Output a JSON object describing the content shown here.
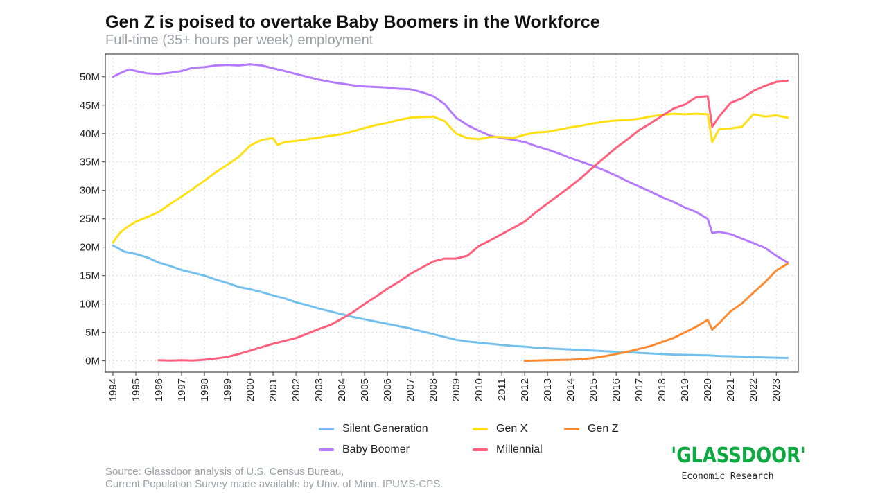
{
  "header": {
    "title": "Gen Z is poised to overtake Baby Boomers in the Workforce",
    "subtitle": "Full-time (35+ hours per week) employment"
  },
  "footer": {
    "source_line1": "Source: Glassdoor analysis of U.S. Census Bureau,",
    "source_line2": "Current Population Survey made available by Univ. of Minn. IPUMS-CPS.",
    "brand_name": "'GLASSDOOR'",
    "brand_sub": "Economic Research"
  },
  "chart_data": {
    "type": "line",
    "title": "Gen Z is poised to overtake Baby Boomers in the Workforce",
    "subtitle": "Full-time (35+ hours per week) employment",
    "xlim": [
      1994,
      2023.6
    ],
    "ylim": [
      -2,
      54
    ],
    "x_ticks": [
      "1994",
      "1995",
      "1996",
      "1997",
      "1998",
      "1999",
      "2000",
      "2001",
      "2002",
      "2003",
      "2004",
      "2005",
      "2006",
      "2007",
      "2008",
      "2009",
      "2010",
      "2011",
      "2012",
      "2013",
      "2014",
      "2015",
      "2016",
      "2017",
      "2018",
      "2019",
      "2020",
      "2021",
      "2022",
      "2023"
    ],
    "y_ticks": [
      {
        "value": 0,
        "label": "0M"
      },
      {
        "value": 5,
        "label": "5M"
      },
      {
        "value": 10,
        "label": "10M"
      },
      {
        "value": 15,
        "label": "15M"
      },
      {
        "value": 20,
        "label": "20M"
      },
      {
        "value": 25,
        "label": "25M"
      },
      {
        "value": 30,
        "label": "30M"
      },
      {
        "value": 35,
        "label": "35M"
      },
      {
        "value": 40,
        "label": "40M"
      },
      {
        "value": 45,
        "label": "45M"
      },
      {
        "value": 50,
        "label": "50M"
      }
    ],
    "grid": true,
    "legend_position": "bottom",
    "series": [
      {
        "name": "Silent Generation",
        "color": "#74c0ec",
        "points": [
          [
            1994,
            20.3
          ],
          [
            1994.5,
            19.2
          ],
          [
            1995,
            18.8
          ],
          [
            1995.5,
            18.2
          ],
          [
            1996,
            17.3
          ],
          [
            1996.5,
            16.7
          ],
          [
            1997,
            16.0
          ],
          [
            1997.5,
            15.5
          ],
          [
            1998,
            15.0
          ],
          [
            1998.5,
            14.3
          ],
          [
            1999,
            13.7
          ],
          [
            1999.5,
            13.0
          ],
          [
            2000,
            12.6
          ],
          [
            2000.5,
            12.1
          ],
          [
            2001,
            11.5
          ],
          [
            2001.5,
            11.0
          ],
          [
            2002,
            10.3
          ],
          [
            2002.5,
            9.8
          ],
          [
            2003,
            9.2
          ],
          [
            2003.5,
            8.7
          ],
          [
            2004,
            8.2
          ],
          [
            2004.5,
            7.7
          ],
          [
            2005,
            7.3
          ],
          [
            2005.5,
            6.9
          ],
          [
            2006,
            6.5
          ],
          [
            2006.5,
            6.1
          ],
          [
            2007,
            5.7
          ],
          [
            2007.5,
            5.2
          ],
          [
            2008,
            4.7
          ],
          [
            2008.5,
            4.2
          ],
          [
            2009,
            3.7
          ],
          [
            2009.5,
            3.4
          ],
          [
            2010,
            3.2
          ],
          [
            2010.5,
            3.0
          ],
          [
            2011,
            2.8
          ],
          [
            2011.5,
            2.6
          ],
          [
            2012,
            2.5
          ],
          [
            2012.5,
            2.3
          ],
          [
            2013,
            2.2
          ],
          [
            2013.5,
            2.1
          ],
          [
            2014,
            2.0
          ],
          [
            2014.5,
            1.9
          ],
          [
            2015,
            1.8
          ],
          [
            2015.5,
            1.7
          ],
          [
            2016,
            1.6
          ],
          [
            2016.5,
            1.5
          ],
          [
            2017,
            1.4
          ],
          [
            2017.5,
            1.3
          ],
          [
            2018,
            1.2
          ],
          [
            2018.5,
            1.1
          ],
          [
            2019,
            1.05
          ],
          [
            2019.5,
            1.0
          ],
          [
            2020,
            0.95
          ],
          [
            2020.5,
            0.85
          ],
          [
            2021,
            0.8
          ],
          [
            2021.5,
            0.75
          ],
          [
            2022,
            0.65
          ],
          [
            2022.5,
            0.6
          ],
          [
            2023,
            0.55
          ],
          [
            2023.5,
            0.5
          ]
        ]
      },
      {
        "name": "Baby Boomer",
        "color": "#b57bff",
        "points": [
          [
            1994,
            50.0
          ],
          [
            1994.3,
            50.6
          ],
          [
            1994.7,
            51.3
          ],
          [
            1995,
            51.0
          ],
          [
            1995.5,
            50.6
          ],
          [
            1996,
            50.5
          ],
          [
            1996.5,
            50.7
          ],
          [
            1997,
            51.0
          ],
          [
            1997.5,
            51.6
          ],
          [
            1998,
            51.7
          ],
          [
            1998.5,
            52.0
          ],
          [
            1999,
            52.1
          ],
          [
            1999.5,
            52.0
          ],
          [
            2000,
            52.2
          ],
          [
            2000.5,
            52.0
          ],
          [
            2001,
            51.5
          ],
          [
            2001.5,
            51.0
          ],
          [
            2002,
            50.5
          ],
          [
            2002.5,
            50.0
          ],
          [
            2003,
            49.5
          ],
          [
            2003.5,
            49.1
          ],
          [
            2004,
            48.8
          ],
          [
            2004.5,
            48.5
          ],
          [
            2005,
            48.3
          ],
          [
            2005.5,
            48.2
          ],
          [
            2006,
            48.1
          ],
          [
            2006.5,
            47.9
          ],
          [
            2007,
            47.8
          ],
          [
            2007.5,
            47.3
          ],
          [
            2008,
            46.6
          ],
          [
            2008.5,
            45.2
          ],
          [
            2009,
            42.8
          ],
          [
            2009.5,
            41.5
          ],
          [
            2010,
            40.5
          ],
          [
            2010.5,
            39.6
          ],
          [
            2011,
            39.2
          ],
          [
            2011.5,
            38.9
          ],
          [
            2012,
            38.5
          ],
          [
            2012.5,
            37.8
          ],
          [
            2013,
            37.2
          ],
          [
            2013.5,
            36.5
          ],
          [
            2014,
            35.7
          ],
          [
            2014.5,
            35.0
          ],
          [
            2015,
            34.3
          ],
          [
            2015.5,
            33.5
          ],
          [
            2016,
            32.6
          ],
          [
            2016.5,
            31.6
          ],
          [
            2017,
            30.7
          ],
          [
            2017.5,
            29.8
          ],
          [
            2018,
            28.8
          ],
          [
            2018.5,
            28.0
          ],
          [
            2019,
            27.0
          ],
          [
            2019.5,
            26.2
          ],
          [
            2020,
            25.0
          ],
          [
            2020.2,
            22.5
          ],
          [
            2020.5,
            22.7
          ],
          [
            2021,
            22.3
          ],
          [
            2021.5,
            21.5
          ],
          [
            2022,
            20.7
          ],
          [
            2022.5,
            19.9
          ],
          [
            2023,
            18.5
          ],
          [
            2023.5,
            17.3
          ]
        ]
      },
      {
        "name": "Gen X",
        "color": "#ffe014",
        "points": [
          [
            1994,
            20.8
          ],
          [
            1994.3,
            22.5
          ],
          [
            1994.6,
            23.5
          ],
          [
            1995,
            24.5
          ],
          [
            1995.5,
            25.3
          ],
          [
            1996,
            26.2
          ],
          [
            1996.5,
            27.6
          ],
          [
            1997,
            28.9
          ],
          [
            1997.5,
            30.3
          ],
          [
            1998,
            31.7
          ],
          [
            1998.5,
            33.2
          ],
          [
            1999,
            34.5
          ],
          [
            1999.5,
            35.9
          ],
          [
            2000,
            37.9
          ],
          [
            2000.5,
            38.9
          ],
          [
            2001,
            39.2
          ],
          [
            2001.2,
            38.0
          ],
          [
            2001.5,
            38.5
          ],
          [
            2002,
            38.7
          ],
          [
            2002.5,
            39.0
          ],
          [
            2003,
            39.3
          ],
          [
            2003.5,
            39.6
          ],
          [
            2004,
            39.9
          ],
          [
            2004.5,
            40.4
          ],
          [
            2005,
            41.0
          ],
          [
            2005.5,
            41.5
          ],
          [
            2006,
            41.9
          ],
          [
            2006.5,
            42.4
          ],
          [
            2007,
            42.8
          ],
          [
            2007.5,
            42.9
          ],
          [
            2008,
            43.0
          ],
          [
            2008.5,
            42.2
          ],
          [
            2009,
            40.0
          ],
          [
            2009.5,
            39.2
          ],
          [
            2010,
            39.0
          ],
          [
            2010.5,
            39.4
          ],
          [
            2011,
            39.4
          ],
          [
            2011.5,
            39.2
          ],
          [
            2012,
            39.8
          ],
          [
            2012.5,
            40.2
          ],
          [
            2013,
            40.3
          ],
          [
            2013.5,
            40.7
          ],
          [
            2014,
            41.1
          ],
          [
            2014.5,
            41.4
          ],
          [
            2015,
            41.8
          ],
          [
            2015.5,
            42.1
          ],
          [
            2016,
            42.3
          ],
          [
            2016.5,
            42.4
          ],
          [
            2017,
            42.6
          ],
          [
            2017.5,
            43.0
          ],
          [
            2018,
            43.3
          ],
          [
            2018.5,
            43.5
          ],
          [
            2019,
            43.4
          ],
          [
            2019.5,
            43.5
          ],
          [
            2020,
            43.4
          ],
          [
            2020.2,
            38.5
          ],
          [
            2020.5,
            40.8
          ],
          [
            2021,
            40.9
          ],
          [
            2021.5,
            41.2
          ],
          [
            2022,
            43.4
          ],
          [
            2022.5,
            43.0
          ],
          [
            2023,
            43.2
          ],
          [
            2023.5,
            42.8
          ]
        ]
      },
      {
        "name": "Millennial",
        "color": "#fd5f7c",
        "points": [
          [
            1996,
            0.1
          ],
          [
            1996.5,
            0.05
          ],
          [
            1997,
            0.1
          ],
          [
            1997.5,
            0.05
          ],
          [
            1998,
            0.2
          ],
          [
            1998.5,
            0.4
          ],
          [
            1999,
            0.7
          ],
          [
            1999.5,
            1.2
          ],
          [
            2000,
            1.8
          ],
          [
            2000.5,
            2.4
          ],
          [
            2001,
            3.0
          ],
          [
            2001.5,
            3.5
          ],
          [
            2002,
            4.0
          ],
          [
            2002.5,
            4.8
          ],
          [
            2003,
            5.6
          ],
          [
            2003.5,
            6.3
          ],
          [
            2004,
            7.4
          ],
          [
            2004.5,
            8.6
          ],
          [
            2005,
            10.0
          ],
          [
            2005.5,
            11.3
          ],
          [
            2006,
            12.7
          ],
          [
            2006.5,
            13.9
          ],
          [
            2007,
            15.3
          ],
          [
            2007.5,
            16.4
          ],
          [
            2008,
            17.5
          ],
          [
            2008.5,
            18.0
          ],
          [
            2009,
            18.0
          ],
          [
            2009.5,
            18.5
          ],
          [
            2010,
            20.2
          ],
          [
            2010.5,
            21.2
          ],
          [
            2011,
            22.3
          ],
          [
            2011.5,
            23.4
          ],
          [
            2012,
            24.5
          ],
          [
            2012.5,
            26.2
          ],
          [
            2013,
            27.7
          ],
          [
            2013.5,
            29.2
          ],
          [
            2014,
            30.7
          ],
          [
            2014.5,
            32.3
          ],
          [
            2015,
            34.1
          ],
          [
            2015.5,
            35.8
          ],
          [
            2016,
            37.5
          ],
          [
            2016.5,
            39.0
          ],
          [
            2017,
            40.6
          ],
          [
            2017.5,
            41.8
          ],
          [
            2018,
            43.1
          ],
          [
            2018.5,
            44.4
          ],
          [
            2019,
            45.1
          ],
          [
            2019.5,
            46.4
          ],
          [
            2020,
            46.6
          ],
          [
            2020.2,
            41.2
          ],
          [
            2020.5,
            43.0
          ],
          [
            2021,
            45.4
          ],
          [
            2021.5,
            46.2
          ],
          [
            2022,
            47.5
          ],
          [
            2022.5,
            48.4
          ],
          [
            2023,
            49.1
          ],
          [
            2023.5,
            49.3
          ]
        ]
      },
      {
        "name": "Gen Z",
        "color": "#fd8a2f",
        "points": [
          [
            2012,
            0.0
          ],
          [
            2012.5,
            0.05
          ],
          [
            2013,
            0.1
          ],
          [
            2013.5,
            0.15
          ],
          [
            2014,
            0.2
          ],
          [
            2014.5,
            0.3
          ],
          [
            2015,
            0.5
          ],
          [
            2015.5,
            0.8
          ],
          [
            2016,
            1.2
          ],
          [
            2016.5,
            1.6
          ],
          [
            2017,
            2.1
          ],
          [
            2017.5,
            2.6
          ],
          [
            2018,
            3.3
          ],
          [
            2018.5,
            4.0
          ],
          [
            2019,
            5.0
          ],
          [
            2019.5,
            6.0
          ],
          [
            2020,
            7.2
          ],
          [
            2020.2,
            5.5
          ],
          [
            2020.5,
            6.6
          ],
          [
            2021,
            8.7
          ],
          [
            2021.5,
            10.1
          ],
          [
            2022,
            12.0
          ],
          [
            2022.5,
            13.8
          ],
          [
            2023,
            15.9
          ],
          [
            2023.5,
            17.1
          ]
        ]
      }
    ],
    "legend": {
      "silent": "Silent Generation",
      "genx": "Gen X",
      "genz": "Gen Z",
      "boomer": "Baby Boomer",
      "millennial": "Millennial"
    }
  }
}
